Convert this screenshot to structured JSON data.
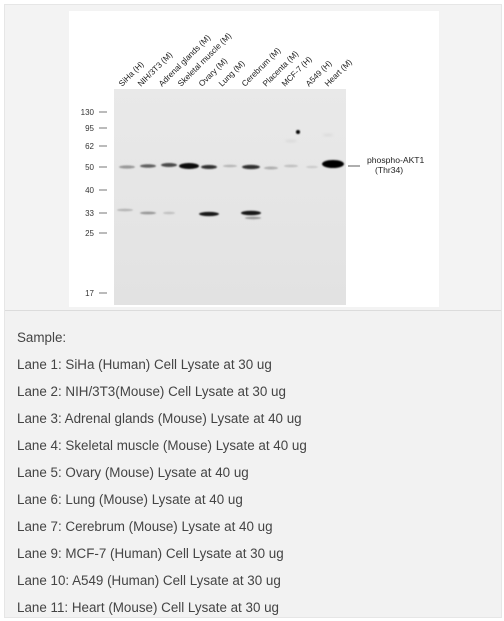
{
  "figure": {
    "lane_labels": [
      "SiHa (H)",
      "NIH/3T3 (M)",
      "Adrenal glands (M)",
      "Skeletal muscle (M)",
      "Ovary (M)",
      "Lung (M)",
      "Cerebrum (M)",
      "Placenta (M)",
      "MCF-7 (H)",
      "A549 (H)",
      "Heart (M)"
    ],
    "mw_markers": [
      "130",
      "95",
      "62",
      "50",
      "40",
      "33",
      "25",
      "17"
    ],
    "target_label_line1": "phospho-AKT1",
    "target_label_line2": "(Thr34)"
  },
  "description": {
    "heading": "Sample:",
    "lanes": [
      "Lane 1: SiHa (Human) Cell Lysate at 30 ug",
      "Lane 2: NIH/3T3(Mouse) Cell Lysate at 30 ug",
      "Lane 3: Adrenal glands (Mouse) Lysate at 40 ug",
      "Lane 4: Skeletal muscle (Mouse) Lysate at 40 ug",
      "Lane 5: Ovary (Mouse) Lysate at 40 ug",
      "Lane 6: Lung (Mouse) Lysate at 40 ug",
      "Lane 7: Cerebrum (Mouse) Lysate at 40 ug",
      "Lane 9: MCF-7 (Human) Cell Lysate at 30 ug",
      "Lane 10: A549 (Human) Cell Lysate at 30 ug",
      "Lane 11: Heart (Mouse) Cell Lysate at 30 ug"
    ]
  }
}
